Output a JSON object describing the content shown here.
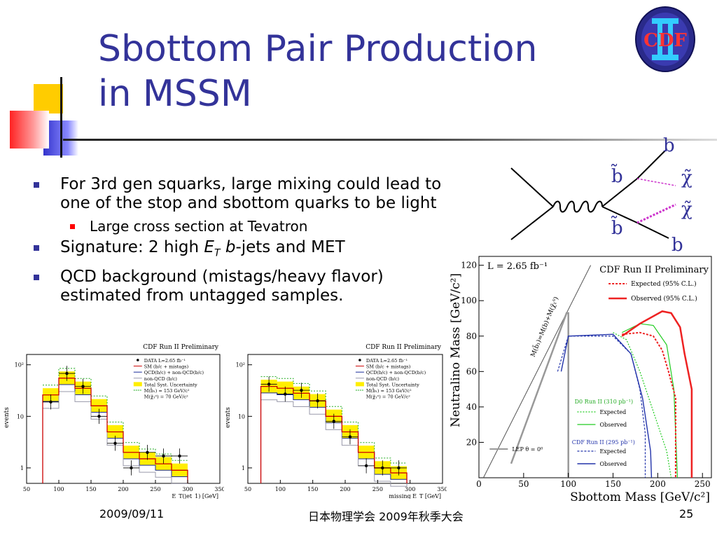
{
  "slide": {
    "title_line1": "Sbottom Pair Production",
    "title_line2": "in MSSM"
  },
  "logo": {
    "text": "CDF"
  },
  "bullets": [
    {
      "text": "For 3rd gen squarks, large mixing could lead to one of the stop and sbottom quarks to be light",
      "level": 1
    },
    {
      "text": "Large cross section at Tevatron",
      "level": 2
    },
    {
      "text_a": "Signature:  2 high ",
      "italic_e": "E",
      "sub_t": "T",
      "italic_b": "b",
      "text_b": "-jets and MET",
      "level": 1
    },
    {
      "text": "QCD background (mistags/heavy flavor) estimated from untagged samples.",
      "level": 1
    }
  ],
  "feynman": {
    "labels": [
      "b",
      "b̃",
      "χ̃",
      "χ̃",
      "b̃",
      "b"
    ]
  },
  "footer": {
    "date": "2009/09/11",
    "conference": "日本物理学会 2009年秋季大会",
    "page": "25"
  },
  "chart_data": [
    {
      "type": "bar",
      "title": "CDF Run II Preliminary",
      "xlabel": "E_T(jet_1) [GeV]",
      "ylabel": "events",
      "yscale": "log",
      "xlim": [
        50,
        350
      ],
      "x_ticks": [
        "50",
        "100",
        "150",
        "200",
        "250",
        "300",
        "350"
      ],
      "y_ticks": [
        "1",
        "10",
        "10²"
      ],
      "legend": [
        "DATA  L=2.65 fb⁻¹",
        "SM (b/c + mistags)",
        "QCD(b/c) + non-QCD(b/c)",
        "non-QCD (b/c)",
        "Total Syst. Uncertainty",
        "M(b̃₁) = 153 GeV/c²",
        "M(χ̃₁⁰) = 70 GeV/c²"
      ],
      "bin_edges": [
        75,
        100,
        125,
        150,
        175,
        200,
        225,
        250,
        275,
        300
      ],
      "series": [
        {
          "name": "SM (b/c + mistags)",
          "values": [
            26,
            55,
            35,
            16,
            5,
            2,
            1.5,
            1.2,
            0.9
          ]
        },
        {
          "name": "DATA",
          "values": [
            19,
            68,
            38,
            10,
            3,
            1,
            2,
            1.7,
            1.7
          ]
        }
      ]
    },
    {
      "type": "bar",
      "title": "CDF Run II Preliminary",
      "xlabel": "missing E_T [GeV]",
      "ylabel": "events",
      "yscale": "log",
      "xlim": [
        50,
        350
      ],
      "x_ticks": [
        "50",
        "100",
        "150",
        "200",
        "250",
        "300",
        "350"
      ],
      "y_ticks": [
        "1",
        "10",
        "10²"
      ],
      "legend": [
        "DATA  L=2.65 fb⁻¹",
        "SM (b/c + mistags)",
        "QCD(b/c) + non-QCD(b/c)",
        "non-QCD (b/c)",
        "Total Syst. Uncertainty",
        "M(b̃₁) = 153 GeV/c²",
        "M(χ̃₁⁰) = 70 GeV/c²"
      ],
      "bin_edges": [
        70,
        95,
        120,
        145,
        170,
        195,
        220,
        245,
        270,
        295
      ],
      "series": [
        {
          "name": "SM (b/c + mistags)",
          "values": [
            38,
            35,
            28,
            20,
            10,
            5,
            2,
            1,
            0.8
          ]
        },
        {
          "name": "DATA",
          "values": [
            42,
            27,
            32,
            20,
            8,
            4,
            1.1,
            1.0,
            1.0
          ]
        }
      ]
    },
    {
      "type": "line",
      "title": "CDF Run II Preliminary",
      "annotation": "L = 2.65 fb⁻¹",
      "xlabel": "Sbottom Mass [GeV/c²]",
      "ylabel": "Neutralino Mass [GeV/c²]",
      "xlim": [
        0,
        260
      ],
      "ylim": [
        0,
        125
      ],
      "x_ticks": [
        "0",
        "50",
        "100",
        "150",
        "200",
        "250"
      ],
      "y_ticks": [
        "20",
        "40",
        "60",
        "80",
        "100",
        "120"
      ],
      "diagonal_label": "M(b̃₁)=M(b)+M(χ̃₁⁰)",
      "legends": [
        "Expected (95% C.L.)",
        "Observed (95% C.L.)",
        "D0 Run II (310 pb⁻¹)",
        "Expected",
        "Observed",
        "CDF Run II (295 pb⁻¹)",
        "Expected",
        "Observed",
        "LEP θ = 0⁰"
      ],
      "series": [
        {
          "name": "Observed (95% C.L.)",
          "x": [
            160,
            180,
            205,
            215,
            225,
            230,
            238,
            238
          ],
          "y": [
            80,
            87,
            94,
            93,
            85,
            70,
            50,
            0
          ]
        },
        {
          "name": "Expected (95% C.L.)",
          "x": [
            160,
            180,
            195,
            205,
            212,
            220,
            220
          ],
          "y": [
            81,
            82,
            80,
            72,
            60,
            45,
            0
          ]
        },
        {
          "name": "D0 Expected",
          "x": [
            150,
            165,
            180,
            190,
            200,
            210,
            215
          ],
          "y": [
            82,
            78,
            60,
            45,
            30,
            15,
            0
          ]
        },
        {
          "name": "D0 Observed",
          "x": [
            160,
            180,
            195,
            210,
            218,
            222
          ],
          "y": [
            82,
            87,
            86,
            75,
            50,
            0
          ]
        },
        {
          "name": "CDF Expected",
          "x": [
            88,
            100,
            150,
            170,
            180,
            186,
            186
          ],
          "y": [
            60,
            80,
            80,
            70,
            50,
            25,
            0
          ]
        },
        {
          "name": "CDF Observed",
          "x": [
            92,
            100,
            150,
            170,
            183,
            192,
            193
          ],
          "y": [
            60,
            80,
            81,
            70,
            45,
            15,
            0
          ]
        }
      ]
    }
  ]
}
